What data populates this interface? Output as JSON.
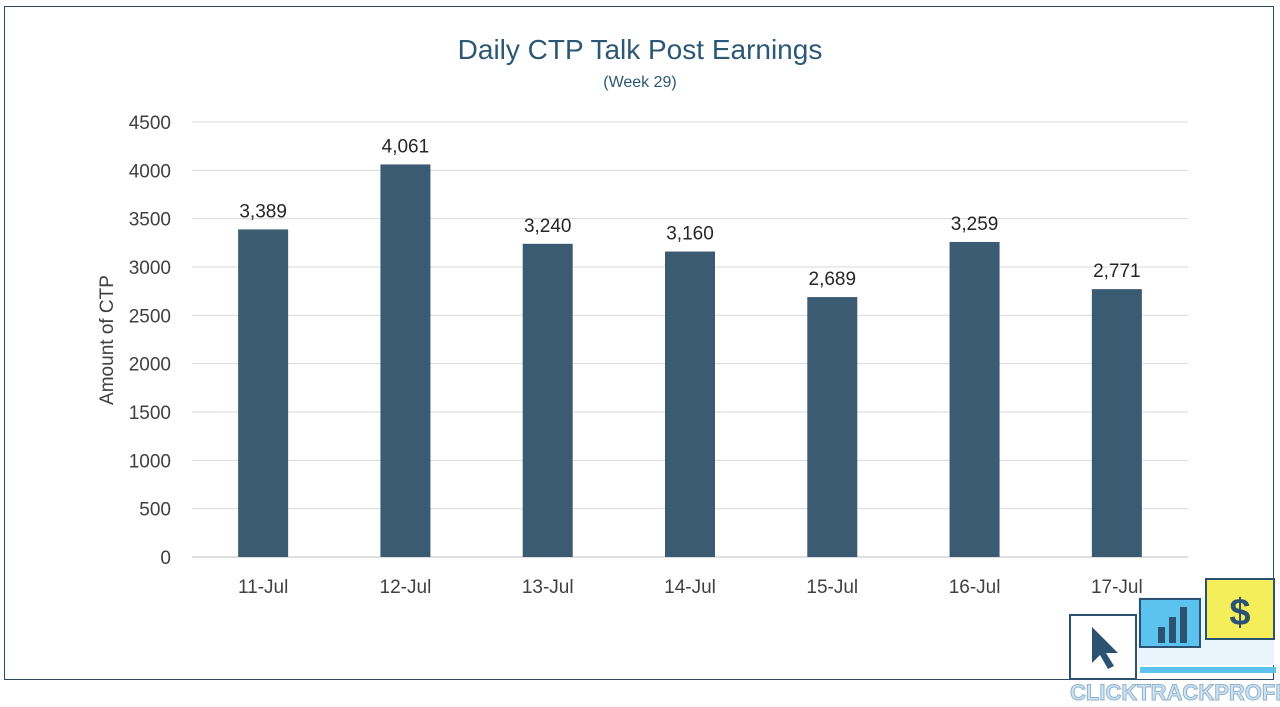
{
  "chart_data": {
    "type": "bar",
    "title": "Daily CTP Talk Post Earnings",
    "subtitle": "(Week 29)",
    "ylabel": "Amount of CTP",
    "categories": [
      "11-Jul",
      "12-Jul",
      "13-Jul",
      "14-Jul",
      "15-Jul",
      "16-Jul",
      "17-Jul"
    ],
    "values": [
      3389,
      4061,
      3240,
      3160,
      2689,
      3259,
      2771
    ],
    "value_labels": [
      "3,389",
      "4,061",
      "3,240",
      "3,160",
      "2,689",
      "3,259",
      "2,771"
    ],
    "ylim": [
      0,
      4500
    ],
    "yticks": [
      0,
      500,
      1000,
      1500,
      2000,
      2500,
      3000,
      3500,
      4000,
      4500
    ],
    "grid": true,
    "legend": "none",
    "bar_color": "#3b5b73"
  },
  "brand": {
    "name": "CLICKTRACKPROFIT",
    "colors": {
      "blue": "#5bc3ee",
      "yellow": "#f4ee5a",
      "navy": "#2b5271"
    }
  }
}
